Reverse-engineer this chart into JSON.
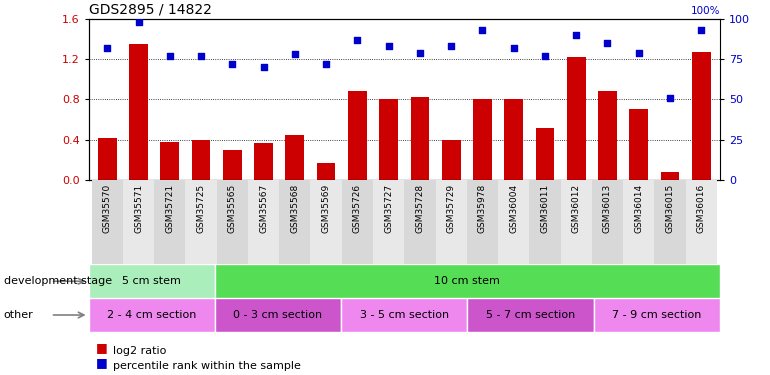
{
  "title": "GDS2895 / 14822",
  "samples": [
    "GSM35570",
    "GSM35571",
    "GSM35721",
    "GSM35725",
    "GSM35565",
    "GSM35567",
    "GSM35568",
    "GSM35569",
    "GSM35726",
    "GSM35727",
    "GSM35728",
    "GSM35729",
    "GSM35978",
    "GSM36004",
    "GSM36011",
    "GSM36012",
    "GSM36013",
    "GSM36014",
    "GSM36015",
    "GSM36016"
  ],
  "bar_values": [
    0.42,
    1.35,
    0.38,
    0.4,
    0.3,
    0.37,
    0.45,
    0.17,
    0.88,
    0.8,
    0.82,
    0.4,
    0.8,
    0.8,
    0.52,
    1.22,
    0.88,
    0.7,
    0.08,
    1.27
  ],
  "percentile": [
    82,
    98,
    77,
    77,
    72,
    70,
    78,
    72,
    87,
    83,
    79,
    83,
    93,
    82,
    77,
    90,
    85,
    79,
    51,
    93
  ],
  "bar_color": "#cc0000",
  "percentile_color": "#0000cc",
  "ylim_left": [
    0,
    1.6
  ],
  "ylim_right": [
    0,
    100
  ],
  "yticks_left": [
    0,
    0.4,
    0.8,
    1.2,
    1.6
  ],
  "yticks_right": [
    0,
    25,
    50,
    75,
    100
  ],
  "dev_stage_groups": [
    {
      "text": "5 cm stem",
      "start": 0,
      "end": 4,
      "color": "#aaeebb"
    },
    {
      "text": "10 cm stem",
      "start": 4,
      "end": 20,
      "color": "#55dd55"
    }
  ],
  "other_groups": [
    {
      "text": "2 - 4 cm section",
      "start": 0,
      "end": 4,
      "color": "#ee88ee"
    },
    {
      "text": "0 - 3 cm section",
      "start": 4,
      "end": 8,
      "color": "#cc55cc"
    },
    {
      "text": "3 - 5 cm section",
      "start": 8,
      "end": 12,
      "color": "#ee88ee"
    },
    {
      "text": "5 - 7 cm section",
      "start": 12,
      "end": 16,
      "color": "#cc55cc"
    },
    {
      "text": "7 - 9 cm section",
      "start": 16,
      "end": 20,
      "color": "#ee88ee"
    }
  ],
  "dev_stage_label": "development stage",
  "other_label": "other",
  "legend_bar": "log2 ratio",
  "legend_pct": "percentile rank within the sample",
  "background_color": "#ffffff",
  "tick_label_fontsize": 6.5,
  "title_fontsize": 10,
  "right_axis_label": "100%"
}
